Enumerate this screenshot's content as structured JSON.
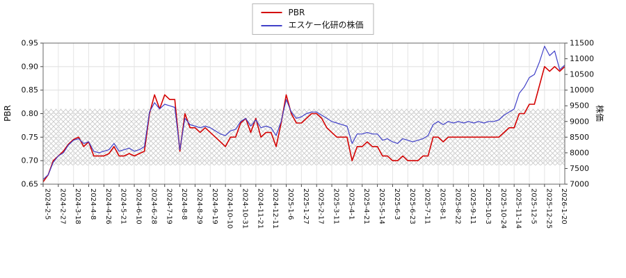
{
  "page": {
    "background": "#ffffff"
  },
  "chart_data": {
    "type": "line",
    "title": "",
    "legend_position": "top-center",
    "grid": true,
    "x_tick_interval": 3,
    "x_tick_labels": [
      "2024-2-5",
      "2024-2-27",
      "2024-3-18",
      "2024-4-8",
      "2024-4-26",
      "2024-5-21",
      "2024-6-10",
      "2024-6-28",
      "2024-7-19",
      "2024-8-8",
      "2024-8-29",
      "2024-9-19",
      "2024-10-10",
      "2024-10-31",
      "2024-11-21",
      "2024-12-11",
      "2025-1-6",
      "2025-1-27",
      "2025-2-17",
      "2025-3-11",
      "2025-4-1",
      "2025-4-21",
      "2025-5-14",
      "2025-6-3",
      "2025-6-23",
      "2025-7-11",
      "2025-8-1",
      "2025-8-22",
      "2025-9-11",
      "2025-10-3",
      "2025-10-24",
      "2025-11-14",
      "2025-12-5",
      "2025-12-25",
      "2026-1-20"
    ],
    "y_left": {
      "label": "PBR",
      "min": 0.65,
      "max": 0.95,
      "ticks": [
        0.65,
        0.7,
        0.75,
        0.8,
        0.85,
        0.9,
        0.95
      ]
    },
    "y_right": {
      "label": "株価",
      "min": 7000,
      "max": 11500,
      "ticks": [
        7000,
        7500,
        8000,
        8500,
        9000,
        9500,
        10000,
        10500,
        11000,
        11500
      ]
    },
    "band": {
      "axis": "left",
      "from": 0.69,
      "to": 0.81,
      "style": "crosshatch"
    },
    "series": [
      {
        "name": "PBR",
        "color": "#d40000",
        "axis": "left",
        "values": [
          0.655,
          0.67,
          0.7,
          0.71,
          0.72,
          0.735,
          0.745,
          0.75,
          0.73,
          0.74,
          0.71,
          0.71,
          0.71,
          0.715,
          0.73,
          0.71,
          0.71,
          0.715,
          0.71,
          0.715,
          0.72,
          0.8,
          0.84,
          0.81,
          0.84,
          0.83,
          0.83,
          0.72,
          0.8,
          0.77,
          0.77,
          0.76,
          0.77,
          0.76,
          0.75,
          0.74,
          0.73,
          0.75,
          0.75,
          0.78,
          0.79,
          0.76,
          0.79,
          0.75,
          0.76,
          0.76,
          0.73,
          0.78,
          0.84,
          0.8,
          0.78,
          0.78,
          0.79,
          0.8,
          0.8,
          0.79,
          0.77,
          0.76,
          0.75,
          0.75,
          0.75,
          0.7,
          0.73,
          0.73,
          0.74,
          0.73,
          0.73,
          0.71,
          0.71,
          0.7,
          0.7,
          0.71,
          0.7,
          0.7,
          0.7,
          0.71,
          0.71,
          0.75,
          0.75,
          0.74,
          0.75,
          0.75,
          0.75,
          0.75,
          0.75,
          0.75,
          0.75,
          0.75,
          0.75,
          0.75,
          0.75,
          0.76,
          0.77,
          0.77,
          0.8,
          0.8,
          0.82,
          0.82,
          0.86,
          0.9,
          0.89,
          0.9,
          0.89,
          0.9
        ]
      },
      {
        "name": "エスケー化研の株価",
        "color": "#4040c8",
        "axis": "right",
        "values": [
          7150,
          7300,
          7700,
          7900,
          8000,
          8250,
          8400,
          8450,
          8300,
          8350,
          8050,
          8000,
          8050,
          8100,
          8300,
          8050,
          8100,
          8150,
          8050,
          8100,
          8200,
          9300,
          9600,
          9400,
          9550,
          9500,
          9450,
          8100,
          9100,
          8900,
          8850,
          8800,
          8850,
          8800,
          8700,
          8600,
          8550,
          8700,
          8750,
          9000,
          9100,
          8850,
          9050,
          8800,
          8850,
          8800,
          8550,
          9000,
          9700,
          9300,
          9100,
          9150,
          9250,
          9300,
          9300,
          9200,
          9100,
          9000,
          8950,
          8900,
          8850,
          8300,
          8600,
          8600,
          8650,
          8600,
          8600,
          8400,
          8450,
          8350,
          8300,
          8450,
          8400,
          8350,
          8400,
          8450,
          8550,
          8900,
          9000,
          8900,
          9000,
          8950,
          9000,
          8950,
          9000,
          8950,
          9000,
          8950,
          9000,
          9000,
          9050,
          9200,
          9300,
          9400,
          9900,
          10100,
          10400,
          10500,
          10900,
          11400,
          11100,
          11250,
          10650,
          10800
        ]
      }
    ]
  }
}
